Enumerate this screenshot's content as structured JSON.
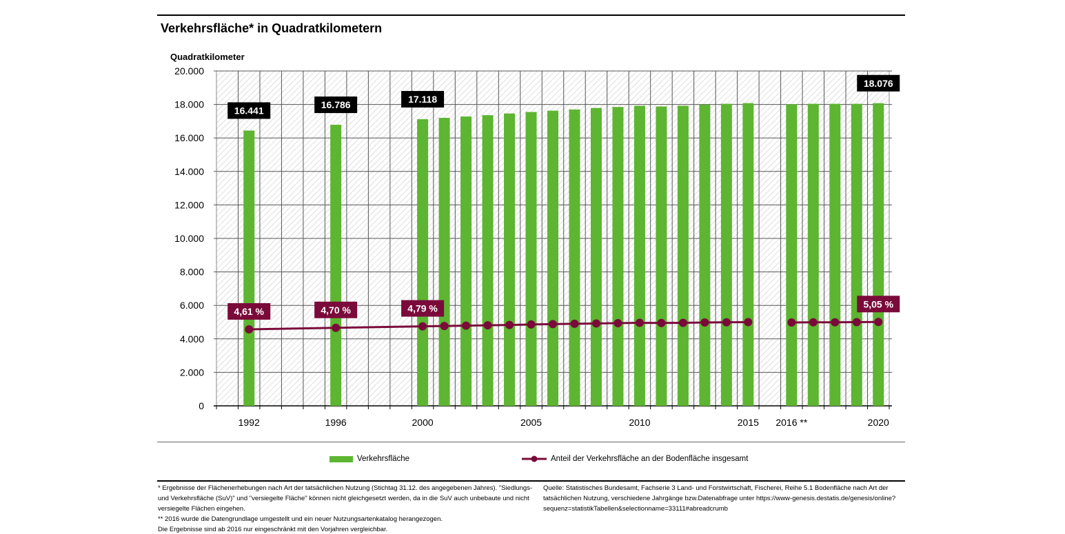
{
  "chart_data": {
    "type": "bar",
    "title": "Verkehrsfläche* in Quadratkilometern",
    "ylabel": "Quadratkilometer",
    "ylim": [
      0,
      20000
    ],
    "yticks": [
      "0",
      "2.000",
      "4.000",
      "6.000",
      "8.000",
      "10.000",
      "12.000",
      "14.000",
      "16.000",
      "18.000",
      "20.000"
    ],
    "grid": true,
    "categories": [
      "1992",
      "1996",
      "2000",
      "2001",
      "2002",
      "2003",
      "2004",
      "2005",
      "2006",
      "2007",
      "2008",
      "2009",
      "2010",
      "2011",
      "2012",
      "2013",
      "2014",
      "2015",
      "2016",
      "2017",
      "2018",
      "2019",
      "2020"
    ],
    "xtick_labels": {
      "1992": "1992",
      "1996": "1996",
      "2000": "2000",
      "2005": "2005",
      "2010": "2010",
      "2015": "2015",
      "2016": "2016 **",
      "2020": "2020"
    },
    "series": [
      {
        "name": "Verkehrsfläche",
        "type": "bar",
        "color": "#5db531",
        "values": [
          16441,
          16786,
          17118,
          17200,
          17280,
          17360,
          17460,
          17550,
          17630,
          17700,
          17790,
          17850,
          17920,
          17880,
          17920,
          17990,
          18040,
          18080,
          18010,
          18040,
          18040,
          18040,
          18076
        ]
      },
      {
        "name": "Anteil der Verkehrsfläche an der Bodenfläche insgesamt",
        "type": "line",
        "color": "#7a0a3a",
        "unit": "%",
        "values": [
          4.61,
          4.7,
          4.79,
          4.81,
          4.83,
          4.85,
          4.87,
          4.9,
          4.92,
          4.94,
          4.96,
          4.98,
          5.0,
          4.99,
          5.0,
          5.02,
          5.03,
          5.04,
          5.02,
          5.03,
          5.03,
          5.04,
          5.05
        ]
      }
    ],
    "bar_labels": [
      {
        "category": "1992",
        "text": "16.441"
      },
      {
        "category": "1996",
        "text": "16.786"
      },
      {
        "category": "2000",
        "text": "17.118"
      },
      {
        "category": "2020",
        "text": "18.076"
      }
    ],
    "line_labels": [
      {
        "category": "1992",
        "text": "4,61 %"
      },
      {
        "category": "1996",
        "text": "4,70 %"
      },
      {
        "category": "2000",
        "text": "4,79 %"
      },
      {
        "category": "2020",
        "text": "5,05 %"
      }
    ],
    "legend": "bottom"
  },
  "footnotes": {
    "left": [
      "* Ergebnisse der Flächenerhebungen nach Art der tatsächlichen Nutzung (Stichtag 31.12. des angegebenen Jahres). \"Siedlungs- und Verkehrsfläche (SuV)\" und \"versiegelte Fläche\" können nicht gleichgesetzt werden, da in die SuV auch unbebaute und nicht versiegelte Flächen eingehen.",
      "** 2016 wurde die Datengrundlage umgestellt und ein neuer Nutzungsartenkatalog herangezogen.",
      "Die Ergebnisse sind ab 2016 nur eingeschränkt mit den Vorjahren vergleichbar."
    ],
    "source": "Quelle: Statistisches Bundesamt, Fachserie 3 Land- und Forstwirtschaft, Fischerei, Reihe 5.1 Bodenfläche nach Art der tatsächlichen Nutzung,  verschiedene Jahrgänge bzw.Datenabfrage unter https://www-genesis.destatis.de/genesis/online?sequenz=statistikTabellen&selectionname=33111#abreadcrumb"
  }
}
